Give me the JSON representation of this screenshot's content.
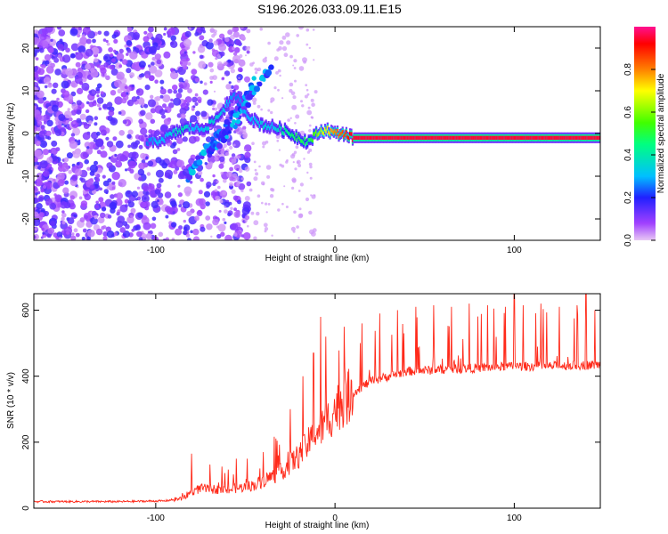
{
  "title": "S196.2026.033.09.11.E15",
  "colors": {
    "series": "#ff2a1a",
    "axis": "#000000"
  },
  "chart_data": [
    {
      "type": "heatmap",
      "xlabel": "Height of straight line (km)",
      "ylabel": "Frequency (Hz)",
      "xlim": [
        -168,
        148
      ],
      "ylim": [
        -25,
        25
      ],
      "xticks": [
        -100,
        0,
        100
      ],
      "xtick_labels": [
        "-100",
        "0",
        "100"
      ],
      "yticks": [
        20,
        10,
        0,
        -10,
        -20
      ],
      "ytick_labels": [
        "20",
        "10",
        "0",
        "-10",
        "-20"
      ],
      "colorbar": {
        "label": "Normalized spectral amplitude",
        "range": [
          0,
          1
        ],
        "ticks": [
          0.0,
          0.2,
          0.4,
          0.6,
          0.8
        ],
        "tick_labels": [
          "0.0",
          "0.2",
          "0.4",
          "0.6",
          "0.8"
        ]
      },
      "ridge": {
        "x": [
          -105,
          -100,
          -95,
          -90,
          -85,
          -80,
          -75,
          -70,
          -65,
          -60,
          -55,
          -50,
          -45,
          -40,
          -35,
          -30,
          -25,
          -20,
          -15,
          -10,
          -5,
          0,
          5,
          10,
          20,
          40,
          60,
          80,
          100,
          120,
          148
        ],
        "freq": [
          -2,
          -2,
          -1,
          0,
          1,
          1.5,
          1,
          2,
          4,
          7,
          9,
          5,
          3,
          2,
          1.5,
          1,
          0,
          -1,
          -2,
          0,
          1,
          0,
          0,
          -1,
          -1,
          -1,
          -1,
          -1,
          -1,
          -1,
          -1
        ],
        "amplitude": [
          0.25,
          0.3,
          0.3,
          0.35,
          0.4,
          0.3,
          0.3,
          0.35,
          0.35,
          0.3,
          0.25,
          0.3,
          0.3,
          0.35,
          0.3,
          0.4,
          0.45,
          0.5,
          0.45,
          0.6,
          0.7,
          0.8,
          0.85,
          0.95,
          0.95,
          0.95,
          0.95,
          0.95,
          0.95,
          0.95,
          0.95
        ]
      },
      "branches": [
        {
          "x": [
            -82,
            -75,
            -68,
            -60,
            -52,
            -45
          ],
          "freq": [
            -10,
            -6,
            -2,
            2,
            7,
            12
          ]
        },
        {
          "x": [
            -70,
            -62,
            -55,
            -48,
            -42,
            -35
          ],
          "freq": [
            -5,
            -1,
            3,
            8,
            12,
            15
          ]
        }
      ]
    },
    {
      "type": "line",
      "xlabel": "Height of straight line (km)",
      "ylabel": "SNR (10 * v/v)",
      "xlim": [
        -168,
        148
      ],
      "ylim": [
        0,
        650
      ],
      "xticks": [
        -100,
        0,
        100
      ],
      "xtick_labels": [
        "-100",
        "0",
        "100"
      ],
      "yticks": [
        0,
        200,
        400,
        600
      ],
      "ytick_labels": [
        "0",
        "200",
        "400",
        "600"
      ],
      "trend": {
        "x": [
          -168,
          -120,
          -95,
          -85,
          -80,
          -75,
          -60,
          -45,
          -30,
          -20,
          -10,
          -5,
          0,
          10,
          20,
          30,
          40,
          60,
          80,
          100,
          120,
          148
        ],
        "y": [
          20,
          20,
          22,
          30,
          50,
          60,
          55,
          70,
          110,
          160,
          230,
          260,
          300,
          350,
          385,
          400,
          415,
          420,
          425,
          430,
          430,
          435
        ]
      },
      "spikes": {
        "x": [
          -80,
          -55,
          -40,
          -25,
          -18,
          -12,
          -8,
          -5,
          5,
          15,
          25,
          35,
          45,
          55,
          65,
          75,
          85,
          95,
          100,
          105,
          115,
          125,
          135,
          140,
          145
        ],
        "y": [
          165,
          150,
          170,
          300,
          400,
          470,
          580,
          520,
          550,
          560,
          590,
          600,
          610,
          615,
          610,
          620,
          615,
          610,
          650,
          615,
          620,
          610,
          615,
          650,
          600
        ]
      }
    }
  ]
}
